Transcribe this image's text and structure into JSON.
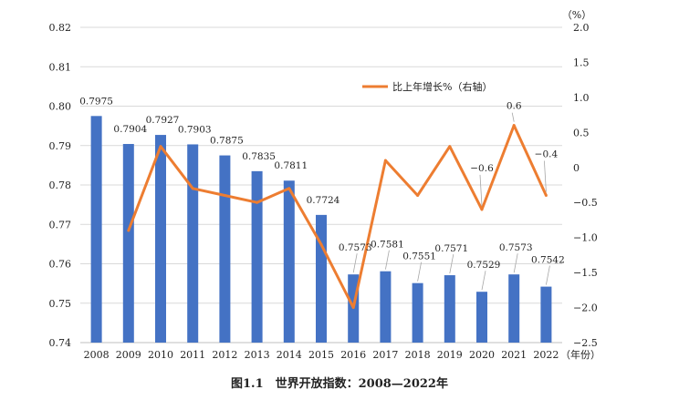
{
  "caption": "图1.1　世界开放指数：2008—2022年",
  "legend_label": "比上年增长%（右轴）",
  "right_unit": "（%）",
  "x_unit": "（年份）",
  "colors": {
    "bar": "#4472C4",
    "line": "#ED7D31",
    "grid": "#D9D9D9",
    "axis": "#BFBFBF"
  },
  "chart_data": {
    "type": "bar",
    "categories": [
      "2008",
      "2009",
      "2010",
      "2011",
      "2012",
      "2013",
      "2014",
      "2015",
      "2016",
      "2017",
      "2018",
      "2019",
      "2020",
      "2021",
      "2022"
    ],
    "grid": true,
    "legend_position": "top-right",
    "series": [
      {
        "type": "bar",
        "axis": "left",
        "values": [
          0.7975,
          0.7904,
          0.7927,
          0.7903,
          0.7875,
          0.7835,
          0.7811,
          0.7724,
          0.7573,
          0.7581,
          0.7551,
          0.7571,
          0.7529,
          0.7573,
          0.7542
        ],
        "labels": [
          "0.7975",
          "0.7904",
          "0.7927",
          "0.7903",
          "0.7875",
          "0.7835",
          "0.7811",
          "0.7724",
          "0.7573",
          "0.7581",
          "0.7551",
          "0.7571",
          "0.7529",
          "0.7573",
          "0.7542"
        ]
      },
      {
        "type": "line",
        "axis": "right",
        "name": "比上年增长%（右轴）",
        "values": [
          null,
          -0.9,
          0.3,
          -0.3,
          -0.4,
          -0.5,
          -0.3,
          -1.1,
          -2.0,
          0.1,
          -0.4,
          0.3,
          -0.6,
          0.6,
          -0.4
        ],
        "labels": [
          null,
          null,
          null,
          null,
          null,
          null,
          null,
          null,
          null,
          null,
          null,
          null,
          "−0.6",
          "0.6",
          "−0.4"
        ]
      }
    ],
    "y_left": {
      "lim": [
        0.74,
        0.82
      ],
      "ticks": [
        "0.74",
        "0.75",
        "0.76",
        "0.77",
        "0.78",
        "0.79",
        "0.80",
        "0.81",
        "0.82"
      ]
    },
    "y_right": {
      "lim": [
        -2.5,
        2.0
      ],
      "ticks": [
        "−2.5",
        "−2.0",
        "−1.5",
        "−1.0",
        "−0.5",
        "0",
        "0.5",
        "1.0",
        "1.5",
        "2.0"
      ]
    }
  }
}
